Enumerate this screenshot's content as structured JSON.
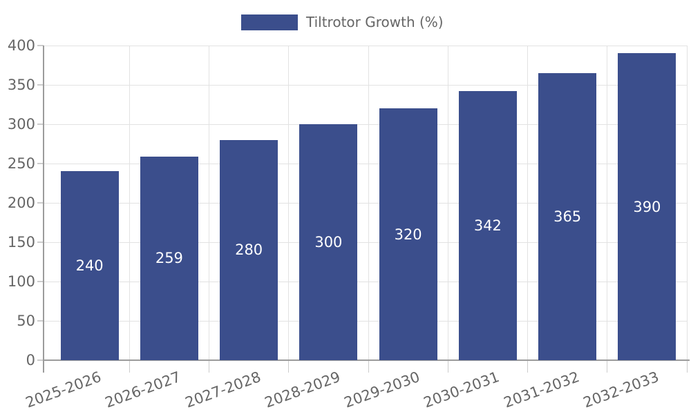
{
  "chart_data": {
    "type": "bar",
    "title": "",
    "legend": "Tiltrotor Growth (%)",
    "legend_position": "top",
    "categories": [
      "2025-2026",
      "2026-2027",
      "2027-2028",
      "2028-2029",
      "2029-2030",
      "2030-2031",
      "2031-2032",
      "2032-2033"
    ],
    "values": [
      240,
      259,
      280,
      300,
      320,
      342,
      365,
      390
    ],
    "value_labels": [
      "240",
      "259",
      "280",
      "300",
      "320",
      "342",
      "365",
      "390"
    ],
    "value_label_position": "inside-center",
    "xlabel": "",
    "ylabel": "",
    "ylim": [
      0,
      400
    ],
    "ytick_step": 50,
    "y_ticks": [
      "0",
      "50",
      "100",
      "150",
      "200",
      "250",
      "300",
      "350",
      "400"
    ],
    "grid": true,
    "x_label_rotation_deg": -20,
    "colors": {
      "bar": "#3B4E8C",
      "axis_text": "#666666",
      "grid": "#e2e2e2",
      "axis_line": "#9b9b9b",
      "tick": "#cccccc",
      "bar_label": "#ffffff",
      "background": "#ffffff"
    }
  }
}
